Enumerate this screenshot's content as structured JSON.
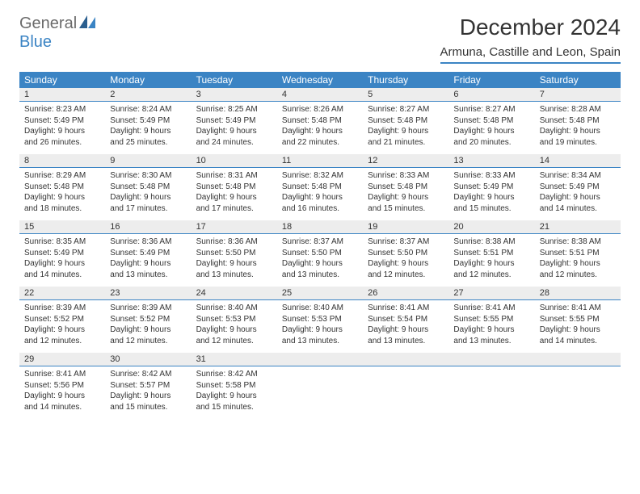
{
  "logo": {
    "text1": "General",
    "text2": "Blue"
  },
  "title": "December 2024",
  "location": "Armuna, Castille and Leon, Spain",
  "day_headers": [
    "Sunday",
    "Monday",
    "Tuesday",
    "Wednesday",
    "Thursday",
    "Friday",
    "Saturday"
  ],
  "colors": {
    "header_bg": "#3b84c4",
    "header_text": "#ffffff",
    "daynum_bg": "#ededed",
    "rule": "#3b84c4",
    "text": "#333333",
    "logo_grey": "#6b6b6b",
    "logo_blue": "#3b84c4"
  },
  "weeks": [
    [
      {
        "n": "1",
        "sr": "Sunrise: 8:23 AM",
        "ss": "Sunset: 5:49 PM",
        "d1": "Daylight: 9 hours",
        "d2": "and 26 minutes."
      },
      {
        "n": "2",
        "sr": "Sunrise: 8:24 AM",
        "ss": "Sunset: 5:49 PM",
        "d1": "Daylight: 9 hours",
        "d2": "and 25 minutes."
      },
      {
        "n": "3",
        "sr": "Sunrise: 8:25 AM",
        "ss": "Sunset: 5:49 PM",
        "d1": "Daylight: 9 hours",
        "d2": "and 24 minutes."
      },
      {
        "n": "4",
        "sr": "Sunrise: 8:26 AM",
        "ss": "Sunset: 5:48 PM",
        "d1": "Daylight: 9 hours",
        "d2": "and 22 minutes."
      },
      {
        "n": "5",
        "sr": "Sunrise: 8:27 AM",
        "ss": "Sunset: 5:48 PM",
        "d1": "Daylight: 9 hours",
        "d2": "and 21 minutes."
      },
      {
        "n": "6",
        "sr": "Sunrise: 8:27 AM",
        "ss": "Sunset: 5:48 PM",
        "d1": "Daylight: 9 hours",
        "d2": "and 20 minutes."
      },
      {
        "n": "7",
        "sr": "Sunrise: 8:28 AM",
        "ss": "Sunset: 5:48 PM",
        "d1": "Daylight: 9 hours",
        "d2": "and 19 minutes."
      }
    ],
    [
      {
        "n": "8",
        "sr": "Sunrise: 8:29 AM",
        "ss": "Sunset: 5:48 PM",
        "d1": "Daylight: 9 hours",
        "d2": "and 18 minutes."
      },
      {
        "n": "9",
        "sr": "Sunrise: 8:30 AM",
        "ss": "Sunset: 5:48 PM",
        "d1": "Daylight: 9 hours",
        "d2": "and 17 minutes."
      },
      {
        "n": "10",
        "sr": "Sunrise: 8:31 AM",
        "ss": "Sunset: 5:48 PM",
        "d1": "Daylight: 9 hours",
        "d2": "and 17 minutes."
      },
      {
        "n": "11",
        "sr": "Sunrise: 8:32 AM",
        "ss": "Sunset: 5:48 PM",
        "d1": "Daylight: 9 hours",
        "d2": "and 16 minutes."
      },
      {
        "n": "12",
        "sr": "Sunrise: 8:33 AM",
        "ss": "Sunset: 5:48 PM",
        "d1": "Daylight: 9 hours",
        "d2": "and 15 minutes."
      },
      {
        "n": "13",
        "sr": "Sunrise: 8:33 AM",
        "ss": "Sunset: 5:49 PM",
        "d1": "Daylight: 9 hours",
        "d2": "and 15 minutes."
      },
      {
        "n": "14",
        "sr": "Sunrise: 8:34 AM",
        "ss": "Sunset: 5:49 PM",
        "d1": "Daylight: 9 hours",
        "d2": "and 14 minutes."
      }
    ],
    [
      {
        "n": "15",
        "sr": "Sunrise: 8:35 AM",
        "ss": "Sunset: 5:49 PM",
        "d1": "Daylight: 9 hours",
        "d2": "and 14 minutes."
      },
      {
        "n": "16",
        "sr": "Sunrise: 8:36 AM",
        "ss": "Sunset: 5:49 PM",
        "d1": "Daylight: 9 hours",
        "d2": "and 13 minutes."
      },
      {
        "n": "17",
        "sr": "Sunrise: 8:36 AM",
        "ss": "Sunset: 5:50 PM",
        "d1": "Daylight: 9 hours",
        "d2": "and 13 minutes."
      },
      {
        "n": "18",
        "sr": "Sunrise: 8:37 AM",
        "ss": "Sunset: 5:50 PM",
        "d1": "Daylight: 9 hours",
        "d2": "and 13 minutes."
      },
      {
        "n": "19",
        "sr": "Sunrise: 8:37 AM",
        "ss": "Sunset: 5:50 PM",
        "d1": "Daylight: 9 hours",
        "d2": "and 12 minutes."
      },
      {
        "n": "20",
        "sr": "Sunrise: 8:38 AM",
        "ss": "Sunset: 5:51 PM",
        "d1": "Daylight: 9 hours",
        "d2": "and 12 minutes."
      },
      {
        "n": "21",
        "sr": "Sunrise: 8:38 AM",
        "ss": "Sunset: 5:51 PM",
        "d1": "Daylight: 9 hours",
        "d2": "and 12 minutes."
      }
    ],
    [
      {
        "n": "22",
        "sr": "Sunrise: 8:39 AM",
        "ss": "Sunset: 5:52 PM",
        "d1": "Daylight: 9 hours",
        "d2": "and 12 minutes."
      },
      {
        "n": "23",
        "sr": "Sunrise: 8:39 AM",
        "ss": "Sunset: 5:52 PM",
        "d1": "Daylight: 9 hours",
        "d2": "and 12 minutes."
      },
      {
        "n": "24",
        "sr": "Sunrise: 8:40 AM",
        "ss": "Sunset: 5:53 PM",
        "d1": "Daylight: 9 hours",
        "d2": "and 12 minutes."
      },
      {
        "n": "25",
        "sr": "Sunrise: 8:40 AM",
        "ss": "Sunset: 5:53 PM",
        "d1": "Daylight: 9 hours",
        "d2": "and 13 minutes."
      },
      {
        "n": "26",
        "sr": "Sunrise: 8:41 AM",
        "ss": "Sunset: 5:54 PM",
        "d1": "Daylight: 9 hours",
        "d2": "and 13 minutes."
      },
      {
        "n": "27",
        "sr": "Sunrise: 8:41 AM",
        "ss": "Sunset: 5:55 PM",
        "d1": "Daylight: 9 hours",
        "d2": "and 13 minutes."
      },
      {
        "n": "28",
        "sr": "Sunrise: 8:41 AM",
        "ss": "Sunset: 5:55 PM",
        "d1": "Daylight: 9 hours",
        "d2": "and 14 minutes."
      }
    ],
    [
      {
        "n": "29",
        "sr": "Sunrise: 8:41 AM",
        "ss": "Sunset: 5:56 PM",
        "d1": "Daylight: 9 hours",
        "d2": "and 14 minutes."
      },
      {
        "n": "30",
        "sr": "Sunrise: 8:42 AM",
        "ss": "Sunset: 5:57 PM",
        "d1": "Daylight: 9 hours",
        "d2": "and 15 minutes."
      },
      {
        "n": "31",
        "sr": "Sunrise: 8:42 AM",
        "ss": "Sunset: 5:58 PM",
        "d1": "Daylight: 9 hours",
        "d2": "and 15 minutes."
      },
      {
        "n": "",
        "sr": "",
        "ss": "",
        "d1": "",
        "d2": ""
      },
      {
        "n": "",
        "sr": "",
        "ss": "",
        "d1": "",
        "d2": ""
      },
      {
        "n": "",
        "sr": "",
        "ss": "",
        "d1": "",
        "d2": ""
      },
      {
        "n": "",
        "sr": "",
        "ss": "",
        "d1": "",
        "d2": ""
      }
    ]
  ]
}
